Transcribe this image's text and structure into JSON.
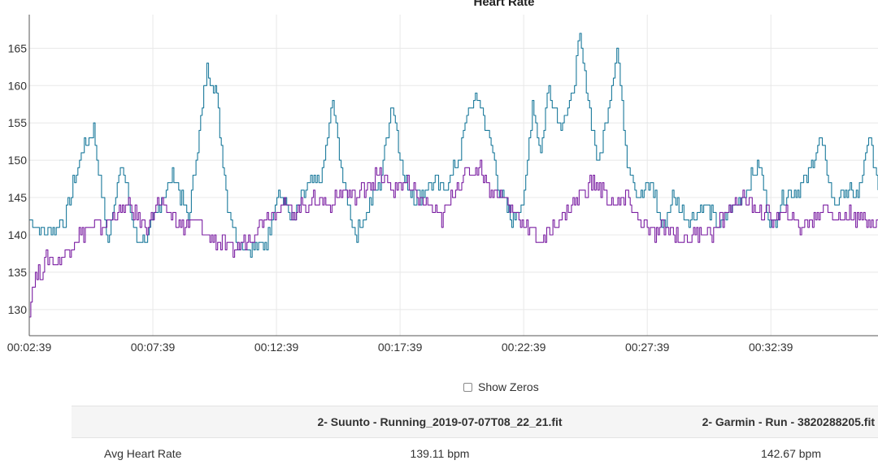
{
  "chart_data": {
    "type": "line",
    "title": "Heart Rate",
    "xlabel": "",
    "ylabel": "",
    "x_tick_labels": [
      "00:02:39",
      "00:07:39",
      "00:12:39",
      "00:17:39",
      "00:22:39",
      "00:27:39",
      "00:32:39"
    ],
    "x_range_seconds": [
      159,
      2219
    ],
    "y_ticks": [
      130,
      135,
      140,
      145,
      150,
      155,
      160,
      165
    ],
    "ylim": [
      126.5,
      169.5
    ],
    "grid": true,
    "legend": "none",
    "series": [
      {
        "color": "#1b7a9c",
        "points": [
          [
            159,
            142
          ],
          [
            200,
            140
          ],
          [
            245,
            142
          ],
          [
            285,
            151
          ],
          [
            315,
            154
          ],
          [
            350,
            139
          ],
          [
            380,
            150
          ],
          [
            420,
            139
          ],
          [
            450,
            140
          ],
          [
            480,
            145
          ],
          [
            510,
            148
          ],
          [
            545,
            142
          ],
          [
            560,
            149
          ],
          [
            590,
            162
          ],
          [
            610,
            160
          ],
          [
            640,
            144
          ],
          [
            665,
            139
          ],
          [
            700,
            138
          ],
          [
            735,
            139
          ],
          [
            760,
            146
          ],
          [
            800,
            142
          ],
          [
            830,
            146
          ],
          [
            870,
            148
          ],
          [
            895,
            158
          ],
          [
            920,
            147
          ],
          [
            950,
            140
          ],
          [
            985,
            144
          ],
          [
            1010,
            147
          ],
          [
            1040,
            158
          ],
          [
            1070,
            147
          ],
          [
            1100,
            145
          ],
          [
            1140,
            147
          ],
          [
            1165,
            146
          ],
          [
            1200,
            150
          ],
          [
            1225,
            157
          ],
          [
            1250,
            158
          ],
          [
            1280,
            152
          ],
          [
            1300,
            146
          ],
          [
            1330,
            142
          ],
          [
            1360,
            145
          ],
          [
            1380,
            158
          ],
          [
            1400,
            151
          ],
          [
            1420,
            160
          ],
          [
            1445,
            155
          ],
          [
            1470,
            157
          ],
          [
            1495,
            166
          ],
          [
            1515,
            158
          ],
          [
            1540,
            149
          ],
          [
            1560,
            156
          ],
          [
            1585,
            165
          ],
          [
            1610,
            150
          ],
          [
            1640,
            145
          ],
          [
            1670,
            147
          ],
          [
            1695,
            141
          ],
          [
            1720,
            145
          ],
          [
            1760,
            142
          ],
          [
            1800,
            144
          ],
          [
            1830,
            141
          ],
          [
            1870,
            144
          ],
          [
            1900,
            146
          ],
          [
            1930,
            150
          ],
          [
            1960,
            141
          ],
          [
            1990,
            145
          ],
          [
            2020,
            146
          ],
          [
            2050,
            148
          ],
          [
            2080,
            153
          ],
          [
            2110,
            144
          ],
          [
            2140,
            146
          ],
          [
            2170,
            145
          ],
          [
            2200,
            153
          ],
          [
            2219,
            146
          ]
        ]
      },
      {
        "color": "#7b1fa2",
        "points": [
          [
            159,
            130
          ],
          [
            170,
            134
          ],
          [
            185,
            135
          ],
          [
            200,
            137
          ],
          [
            225,
            136
          ],
          [
            250,
            138
          ],
          [
            280,
            140
          ],
          [
            310,
            141
          ],
          [
            340,
            141
          ],
          [
            370,
            143
          ],
          [
            400,
            144
          ],
          [
            440,
            141
          ],
          [
            470,
            144
          ],
          [
            500,
            143
          ],
          [
            530,
            141
          ],
          [
            560,
            142
          ],
          [
            590,
            140
          ],
          [
            620,
            139
          ],
          [
            650,
            138
          ],
          [
            680,
            139
          ],
          [
            710,
            141
          ],
          [
            740,
            143
          ],
          [
            770,
            144
          ],
          [
            800,
            143
          ],
          [
            830,
            144
          ],
          [
            860,
            145
          ],
          [
            890,
            144
          ],
          [
            920,
            146
          ],
          [
            950,
            145
          ],
          [
            980,
            147
          ],
          [
            1010,
            148
          ],
          [
            1040,
            146
          ],
          [
            1070,
            147
          ],
          [
            1100,
            145
          ],
          [
            1130,
            144
          ],
          [
            1160,
            142
          ],
          [
            1190,
            146
          ],
          [
            1220,
            148
          ],
          [
            1250,
            149
          ],
          [
            1280,
            146
          ],
          [
            1310,
            145
          ],
          [
            1340,
            143
          ],
          [
            1370,
            141
          ],
          [
            1400,
            139
          ],
          [
            1430,
            141
          ],
          [
            1460,
            143
          ],
          [
            1490,
            145
          ],
          [
            1520,
            147
          ],
          [
            1550,
            146
          ],
          [
            1580,
            144
          ],
          [
            1610,
            145
          ],
          [
            1640,
            142
          ],
          [
            1670,
            140
          ],
          [
            1700,
            141
          ],
          [
            1730,
            140
          ],
          [
            1760,
            139
          ],
          [
            1790,
            141
          ],
          [
            1820,
            140
          ],
          [
            1850,
            143
          ],
          [
            1880,
            145
          ],
          [
            1910,
            144
          ],
          [
            1940,
            143
          ],
          [
            1970,
            142
          ],
          [
            2000,
            143
          ],
          [
            2030,
            141
          ],
          [
            2060,
            142
          ],
          [
            2090,
            144
          ],
          [
            2120,
            142
          ],
          [
            2150,
            143
          ],
          [
            2180,
            142
          ],
          [
            2219,
            142
          ]
        ]
      }
    ]
  },
  "controls": {
    "show_zeros_label": "Show Zeros",
    "show_zeros_checked": false
  },
  "table": {
    "headers": [
      "",
      "2- Suunto - Running_2019-07-07T08_22_21.fit",
      "2- Garmin - Run - 3820288205.fit"
    ],
    "rows": [
      {
        "label": "Avg Heart Rate",
        "a": "139.11 bpm",
        "b": "142.67 bpm"
      }
    ]
  }
}
